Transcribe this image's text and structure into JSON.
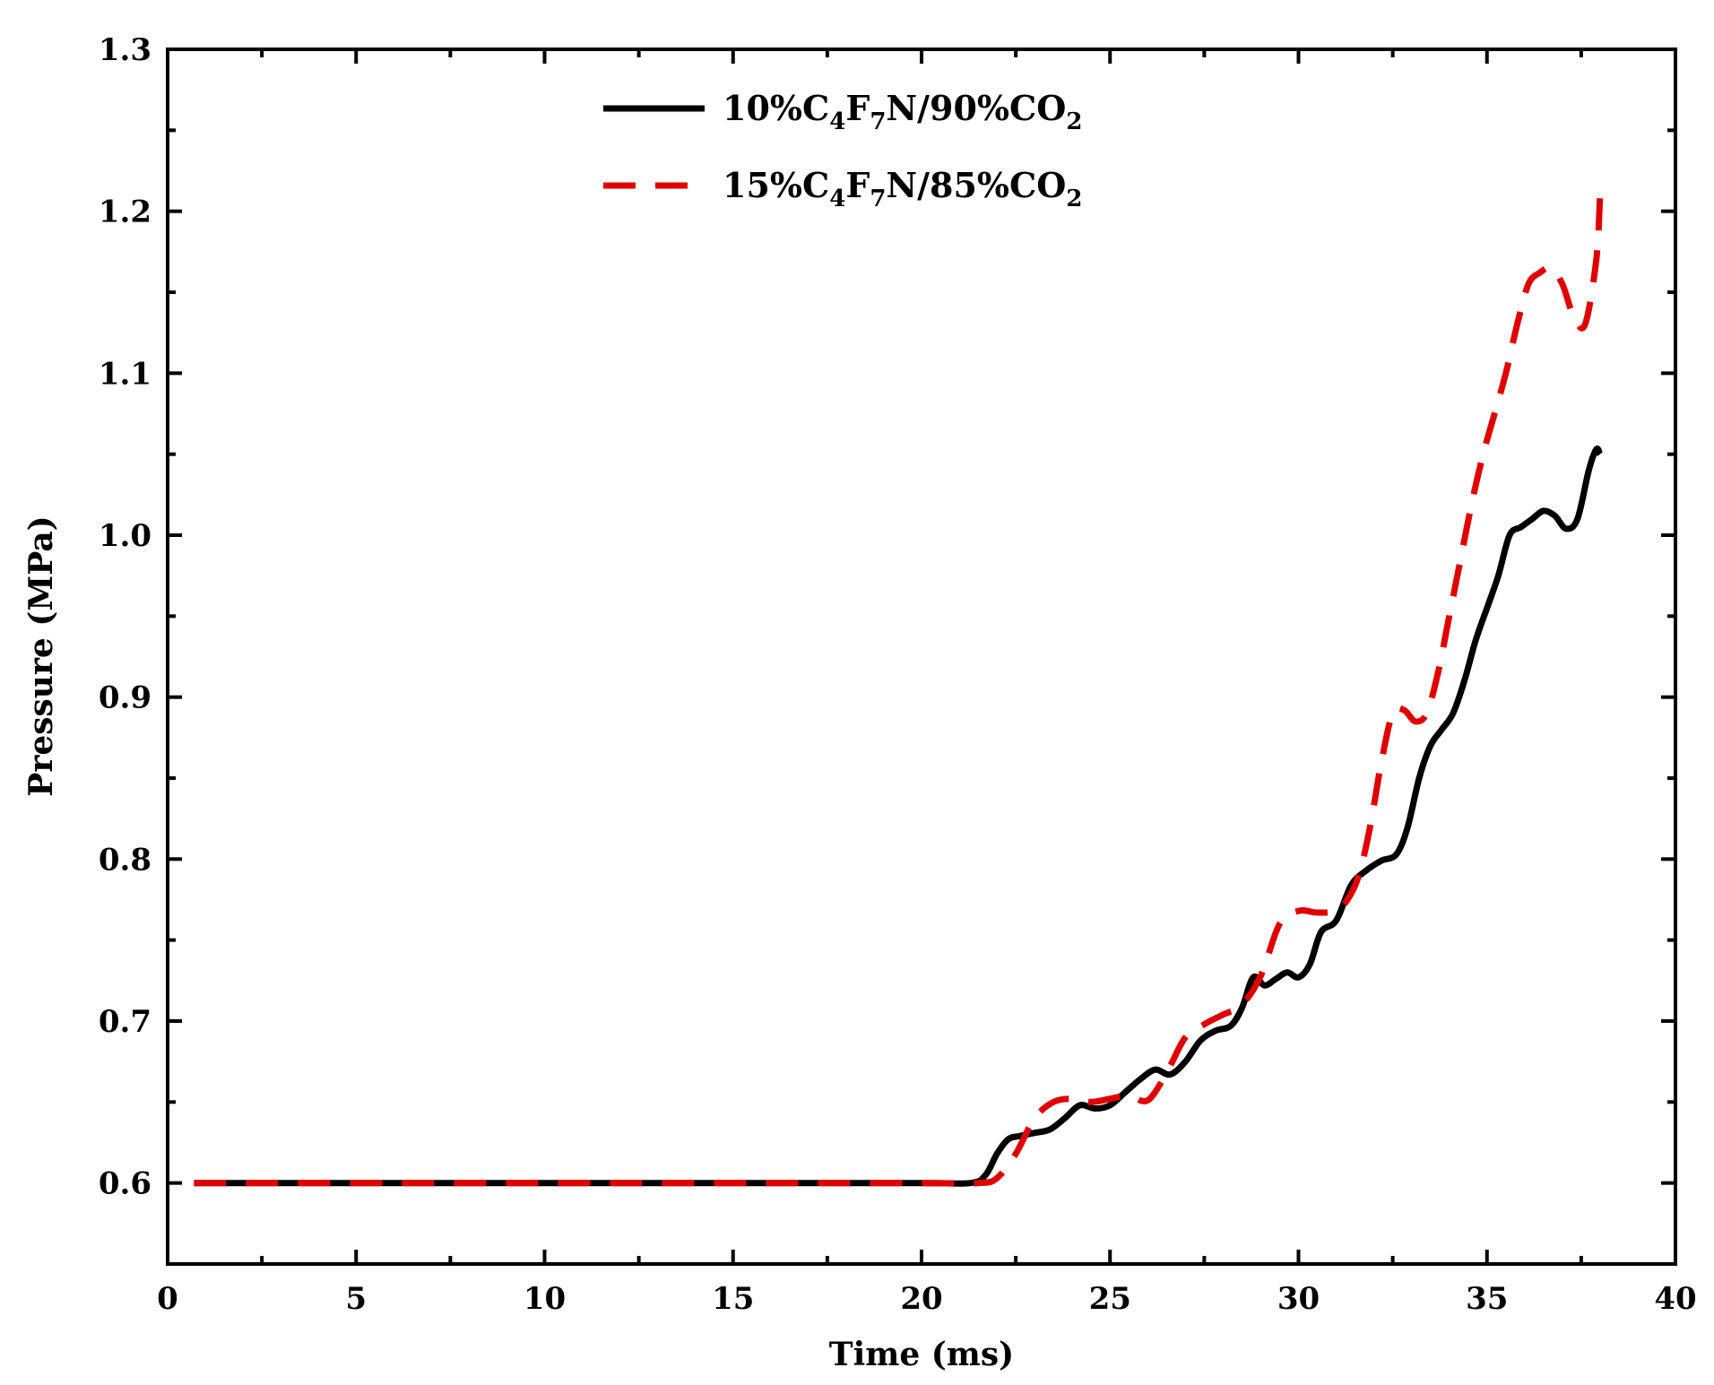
{
  "chart_data": {
    "type": "line",
    "title": "",
    "xlabel": "Time (ms)",
    "ylabel": "Pressure (MPa)",
    "xlim": [
      0,
      40
    ],
    "ylim": [
      0.55,
      1.3
    ],
    "xticks": [
      0,
      5,
      10,
      15,
      20,
      25,
      30,
      35,
      40
    ],
    "yticks": [
      0.6,
      0.7,
      0.8,
      0.9,
      1.0,
      1.1,
      1.2,
      1.3
    ],
    "ytick_labels": [
      "0.6",
      "0.7",
      "0.8",
      "0.9",
      "1.0",
      "1.1",
      "1.2",
      "1.3"
    ],
    "legend_position": "top-center",
    "series": [
      {
        "name": "10%C4F7N/90%CO2",
        "legend_parts": [
          {
            "text": "10%C",
            "sub": false
          },
          {
            "text": "4",
            "sub": true
          },
          {
            "text": "F",
            "sub": false
          },
          {
            "text": "7",
            "sub": true
          },
          {
            "text": "N/90%CO",
            "sub": false
          },
          {
            "text": "2",
            "sub": true
          }
        ],
        "color": "#000000",
        "style": "solid",
        "x": [
          0.7,
          5,
          10,
          15,
          20,
          21.3,
          21.7,
          22.0,
          22.3,
          22.6,
          23.0,
          23.4,
          23.8,
          24.2,
          24.6,
          25.0,
          25.4,
          25.8,
          26.2,
          26.6,
          27.0,
          27.4,
          27.8,
          28.2,
          28.5,
          28.8,
          29.1,
          29.4,
          29.7,
          30.0,
          30.3,
          30.6,
          31.0,
          31.4,
          31.8,
          32.2,
          32.6,
          32.9,
          33.2,
          33.5,
          33.8,
          34.1,
          34.4,
          34.7,
          35.0,
          35.3,
          35.6,
          35.9,
          36.2,
          36.5,
          36.8,
          37.1,
          37.4,
          37.7,
          37.9,
          38.0
        ],
        "y": [
          0.6,
          0.6,
          0.6,
          0.6,
          0.6,
          0.6,
          0.605,
          0.618,
          0.627,
          0.629,
          0.631,
          0.633,
          0.64,
          0.648,
          0.646,
          0.648,
          0.656,
          0.664,
          0.67,
          0.667,
          0.675,
          0.688,
          0.694,
          0.697,
          0.708,
          0.727,
          0.722,
          0.726,
          0.73,
          0.727,
          0.735,
          0.755,
          0.762,
          0.784,
          0.793,
          0.799,
          0.803,
          0.82,
          0.85,
          0.87,
          0.88,
          0.89,
          0.91,
          0.935,
          0.955,
          0.975,
          1.0,
          1.005,
          1.01,
          1.015,
          1.012,
          1.004,
          1.01,
          1.04,
          1.053,
          1.05
        ]
      },
      {
        "name": "15%C4F7N/85%CO2",
        "legend_parts": [
          {
            "text": "15%C",
            "sub": false
          },
          {
            "text": "4",
            "sub": true
          },
          {
            "text": "F",
            "sub": false
          },
          {
            "text": "7",
            "sub": true
          },
          {
            "text": "N/85%CO",
            "sub": false
          },
          {
            "text": "2",
            "sub": true
          }
        ],
        "color": "#e00000",
        "style": "dashed",
        "x": [
          0.7,
          5,
          10,
          15,
          20,
          21.5,
          22.0,
          22.5,
          23.0,
          23.5,
          24.0,
          24.5,
          25.0,
          25.5,
          26.0,
          26.5,
          27.0,
          27.5,
          28.0,
          28.5,
          29.0,
          29.5,
          30.0,
          30.5,
          31.0,
          31.3,
          31.6,
          31.9,
          32.2,
          32.5,
          32.8,
          33.1,
          33.4,
          33.7,
          34.0,
          34.3,
          34.6,
          34.9,
          35.2,
          35.5,
          35.8,
          36.1,
          36.4,
          36.7,
          37.0,
          37.3,
          37.6,
          37.9,
          38.0
        ],
        "y": [
          0.6,
          0.6,
          0.6,
          0.6,
          0.6,
          0.6,
          0.603,
          0.618,
          0.64,
          0.65,
          0.652,
          0.65,
          0.652,
          0.654,
          0.651,
          0.668,
          0.69,
          0.698,
          0.704,
          0.71,
          0.728,
          0.76,
          0.768,
          0.767,
          0.768,
          0.775,
          0.79,
          0.82,
          0.86,
          0.89,
          0.892,
          0.885,
          0.89,
          0.915,
          0.95,
          0.985,
          1.02,
          1.05,
          1.075,
          1.1,
          1.13,
          1.155,
          1.162,
          1.165,
          1.155,
          1.135,
          1.13,
          1.17,
          1.21
        ]
      }
    ]
  }
}
